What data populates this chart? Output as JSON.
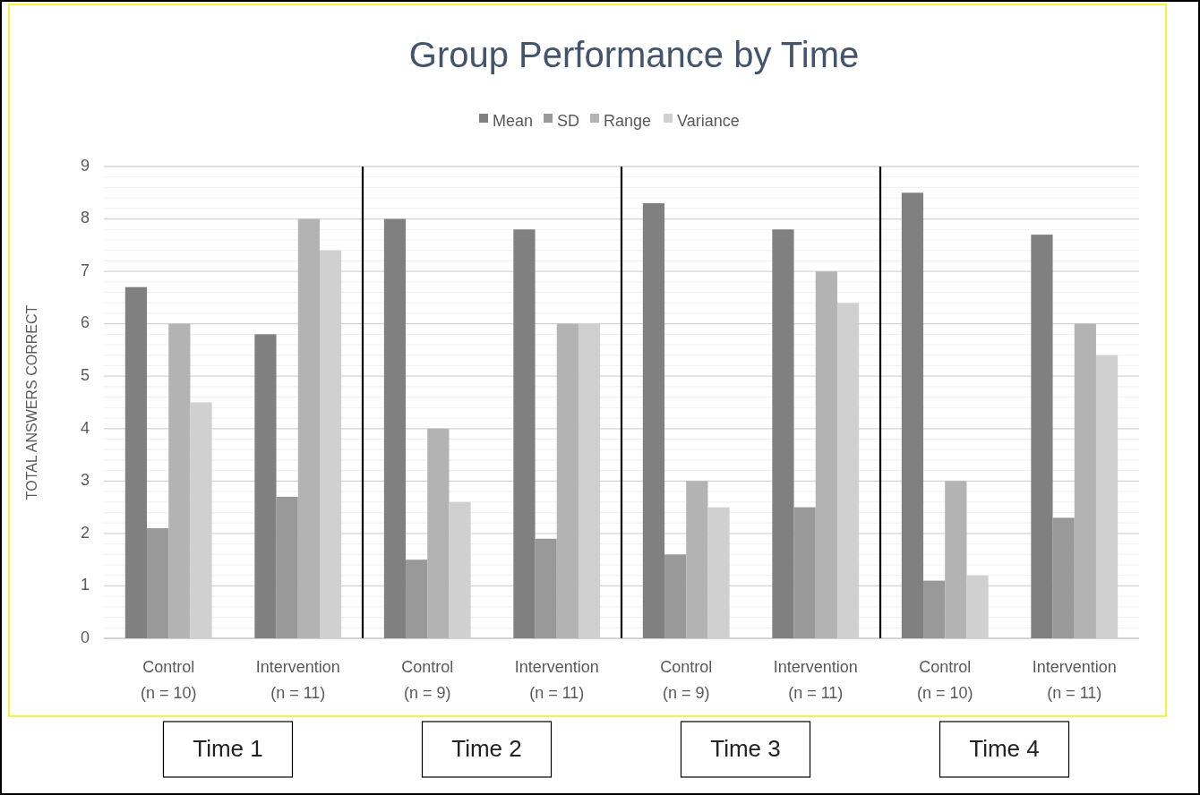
{
  "chart_data": {
    "type": "bar",
    "title": "Group Performance by Time",
    "ylabel": "TOTAL ANSWERS CORRECT",
    "categories": [
      "Control\n(n = 10)",
      "Intervention\n(n = 11)",
      "Control\n(n = 9)",
      "Intervention\n(n = 11)",
      "Control\n(n = 9)",
      "Intervention\n(n = 11)",
      "Control\n(n = 10)",
      "Intervention\n(n = 11)"
    ],
    "series": [
      {
        "name": "Mean",
        "color": "#808080",
        "values": [
          6.7,
          5.8,
          8,
          7.8,
          8.3,
          7.8,
          8.5,
          7.7
        ]
      },
      {
        "name": "SD",
        "color": "#999999",
        "values": [
          2.1,
          2.7,
          1.5,
          1.9,
          1.6,
          2.5,
          1.1,
          2.3
        ]
      },
      {
        "name": "Range",
        "color": "#b3b3b3",
        "values": [
          6,
          8,
          4,
          6,
          3,
          7,
          3,
          6
        ]
      },
      {
        "name": "Variance",
        "color": "#d0d0d0",
        "values": [
          4.5,
          7.4,
          2.6,
          6,
          2.5,
          6.4,
          1.2,
          5.4
        ]
      }
    ],
    "ylim": [
      0,
      9
    ],
    "yticks": [
      0,
      {
        "value": 0.2,
        "label": null
      },
      {
        "value": 0.4,
        "label": null
      },
      {
        "value": 0.6,
        "label": null
      },
      {
        "value": 0.8,
        "label": null
      },
      1,
      {
        "value": 1.2,
        "label": null
      },
      {
        "value": 1.4,
        "label": null
      },
      {
        "value": 1.6,
        "label": null
      },
      {
        "value": 1.8,
        "label": null
      },
      2,
      {
        "value": 2.2,
        "label": null
      },
      {
        "value": 2.4,
        "label": null
      },
      {
        "value": 2.6,
        "label": null
      },
      {
        "value": 2.8,
        "label": null
      },
      3,
      {
        "value": 3.2,
        "label": null
      },
      {
        "value": 3.4,
        "label": null
      },
      {
        "value": 3.6,
        "label": null
      },
      {
        "value": 3.8,
        "label": null
      },
      4,
      {
        "value": 4.2,
        "label": null
      },
      {
        "value": 4.4,
        "label": null
      },
      {
        "value": 4.6,
        "label": null
      },
      {
        "value": 4.8,
        "label": null
      },
      5,
      {
        "value": 5.2,
        "label": null
      },
      {
        "value": 5.4,
        "label": null
      },
      {
        "value": 5.6,
        "label": null
      },
      {
        "value": 5.8,
        "label": null
      },
      6,
      {
        "value": 6.2,
        "label": null
      },
      {
        "value": 6.4,
        "label": null
      },
      {
        "value": 6.6,
        "label": null
      },
      {
        "value": 6.8,
        "label": null
      },
      7,
      {
        "value": 7.2,
        "label": null
      },
      {
        "value": 7.4,
        "label": null
      },
      {
        "value": 7.6,
        "label": null
      },
      {
        "value": 7.8,
        "label": null
      },
      8,
      {
        "value": 8.2,
        "label": null
      },
      {
        "value": 8.4,
        "label": null
      },
      {
        "value": 8.6,
        "label": null
      },
      {
        "value": 8.8,
        "label": null
      },
      9
    ],
    "grid": "y",
    "legend": "top",
    "annotations": [
      "Time 1",
      "Time 2",
      "Time 3",
      "Time 4"
    ]
  }
}
